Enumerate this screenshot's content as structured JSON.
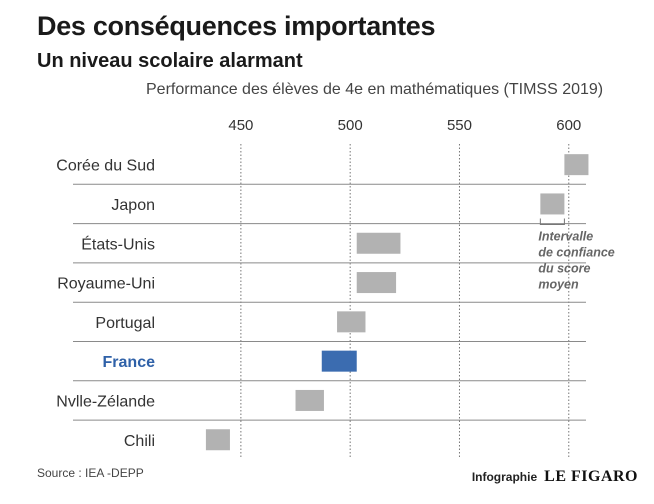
{
  "header": {
    "title": "Des conséquences importantes",
    "subtitle": "Un niveau scolaire alarmant"
  },
  "chart_data": {
    "type": "bar",
    "title": "Performance des élèves de 4e en mathématiques (TIMSS 2019)",
    "x_ticks": [
      450,
      500,
      550,
      600
    ],
    "xlim": [
      413,
      612
    ],
    "grid": true,
    "categories": [
      "Corée du Sud",
      "Japon",
      "États-Unis",
      "Royaume-Uni",
      "Portugal",
      "France",
      "Nvlle-Zélande",
      "Chili"
    ],
    "ranges": [
      [
        598,
        609
      ],
      [
        587,
        598
      ],
      [
        503,
        523
      ],
      [
        503,
        521
      ],
      [
        494,
        507
      ],
      [
        487,
        503
      ],
      [
        475,
        488
      ],
      [
        434,
        445
      ]
    ],
    "highlight": "France",
    "colors": {
      "default": "#b2b2b2",
      "highlight": "#3b6cb0",
      "highlight_label": "#2f61a8",
      "grid": "#777777",
      "separator": "#8a8a8a"
    },
    "annotation": {
      "lines": [
        "Intervalle",
        "de confiance",
        "du score",
        "moyen"
      ],
      "category": "Japon"
    }
  },
  "footer": {
    "source": "Source : IEA -DEPP",
    "credit_label": "Infographie",
    "credit_logo": "LE FIGARO"
  }
}
